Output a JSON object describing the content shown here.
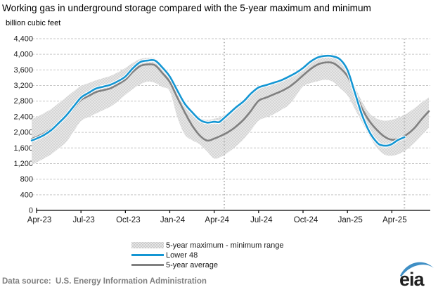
{
  "title": "Working gas in underground storage compared with the 5-year maximum and minimum",
  "y_axis_unit_label": "billion cubic feet",
  "footer": {
    "data_source": "Data source:  U.S. Energy Information Administration"
  },
  "logo": {
    "text": "eia"
  },
  "colors": {
    "lower48": "#1496d3",
    "average": "#808080",
    "band_fill": "#e6e6e6",
    "band_dots": "#c2c2c2",
    "gridline": "#c6c6c6",
    "axis": "#000000",
    "reference_line": "#b3b3b3",
    "logo_blue": "#3f8fc5",
    "logo_text": "#1f1f1f"
  },
  "legend": [
    {
      "label": "5-year maximum - minimum range",
      "swatch": "band"
    },
    {
      "label": "Lower 48",
      "swatch": "line",
      "color": "#1496d3"
    },
    {
      "label": "5-year average",
      "swatch": "line",
      "color": "#808080"
    }
  ],
  "chart_data": {
    "type": "line",
    "title": "Working gas in underground storage compared with the 5-year maximum and minimum",
    "xlabel": "",
    "ylabel": "billion cubic feet",
    "ylim": [
      0,
      4400
    ],
    "y_tick_step": 400,
    "grid": true,
    "legend_position": "bottom",
    "x_unit": "months since Apr-2023",
    "x_range": [
      -0.33,
      26.55
    ],
    "x_ticks": [
      {
        "t": 0,
        "label": "Apr-23"
      },
      {
        "t": 3,
        "label": "Jul-23"
      },
      {
        "t": 6,
        "label": "Oct-23"
      },
      {
        "t": 9,
        "label": "Jan-24"
      },
      {
        "t": 12,
        "label": "Apr-24"
      },
      {
        "t": 15,
        "label": "Jul-24"
      },
      {
        "t": 18,
        "label": "Oct-24"
      },
      {
        "t": 21,
        "label": "Jan-25"
      },
      {
        "t": 24,
        "label": "Apr-25"
      }
    ],
    "reference_lines_x": [
      12.68,
      24.85
    ],
    "series": [
      {
        "name": "5-year maximum - minimum range",
        "type": "band",
        "upper": [
          [
            -0.33,
            2330
          ],
          [
            0,
            2390
          ],
          [
            0.5,
            2490
          ],
          [
            1,
            2600
          ],
          [
            1.5,
            2750
          ],
          [
            2,
            2900
          ],
          [
            2.5,
            3050
          ],
          [
            3,
            3190
          ],
          [
            3.5,
            3260
          ],
          [
            4,
            3330
          ],
          [
            4.5,
            3390
          ],
          [
            5,
            3450
          ],
          [
            5.5,
            3540
          ],
          [
            6,
            3650
          ],
          [
            6.5,
            3780
          ],
          [
            7,
            3880
          ],
          [
            7.5,
            3910
          ],
          [
            8,
            3890
          ],
          [
            8.5,
            3690
          ],
          [
            9,
            3470
          ],
          [
            9.5,
            3100
          ],
          [
            10,
            2760
          ],
          [
            10.5,
            2550
          ],
          [
            11,
            2380
          ],
          [
            11.5,
            2320
          ],
          [
            12,
            2350
          ],
          [
            12.5,
            2400
          ],
          [
            13,
            2540
          ],
          [
            13.5,
            2700
          ],
          [
            14,
            2850
          ],
          [
            14.5,
            3040
          ],
          [
            15,
            3180
          ],
          [
            15.5,
            3240
          ],
          [
            16,
            3300
          ],
          [
            16.5,
            3360
          ],
          [
            17,
            3450
          ],
          [
            17.5,
            3560
          ],
          [
            18,
            3700
          ],
          [
            18.5,
            3860
          ],
          [
            19,
            3950
          ],
          [
            19.5,
            3980
          ],
          [
            20,
            3970
          ],
          [
            20.5,
            3890
          ],
          [
            21,
            3640
          ],
          [
            21.5,
            3180
          ],
          [
            22,
            2780
          ],
          [
            22.5,
            2480
          ],
          [
            23,
            2350
          ],
          [
            23.5,
            2300
          ],
          [
            24,
            2320
          ],
          [
            24.5,
            2390
          ],
          [
            25,
            2480
          ],
          [
            25.5,
            2610
          ],
          [
            26,
            2760
          ],
          [
            26.5,
            2900
          ]
        ],
        "lower": [
          [
            -0.33,
            1170
          ],
          [
            0,
            1230
          ],
          [
            0.5,
            1330
          ],
          [
            1,
            1440
          ],
          [
            1.5,
            1590
          ],
          [
            2,
            1750
          ],
          [
            2.5,
            2020
          ],
          [
            3,
            2290
          ],
          [
            3.5,
            2390
          ],
          [
            4,
            2480
          ],
          [
            4.5,
            2570
          ],
          [
            5,
            2660
          ],
          [
            5.5,
            2800
          ],
          [
            6,
            2960
          ],
          [
            6.5,
            3110
          ],
          [
            7,
            3230
          ],
          [
            7.5,
            3300
          ],
          [
            8,
            3270
          ],
          [
            8.5,
            3160
          ],
          [
            9,
            3050
          ],
          [
            9.5,
            2400
          ],
          [
            10,
            1950
          ],
          [
            10.5,
            1800
          ],
          [
            11,
            1700
          ],
          [
            11.5,
            1520
          ],
          [
            12,
            1330
          ],
          [
            12.5,
            1380
          ],
          [
            13,
            1500
          ],
          [
            13.5,
            1650
          ],
          [
            14,
            1830
          ],
          [
            14.5,
            2060
          ],
          [
            15,
            2300
          ],
          [
            15.5,
            2380
          ],
          [
            16,
            2460
          ],
          [
            16.5,
            2570
          ],
          [
            17,
            2690
          ],
          [
            17.5,
            2920
          ],
          [
            18,
            3180
          ],
          [
            18.5,
            3260
          ],
          [
            19,
            3310
          ],
          [
            19.5,
            3350
          ],
          [
            20,
            3300
          ],
          [
            20.5,
            3130
          ],
          [
            21,
            2950
          ],
          [
            21.5,
            2600
          ],
          [
            22,
            2250
          ],
          [
            22.5,
            1900
          ],
          [
            23,
            1600
          ],
          [
            23.5,
            1430
          ],
          [
            24,
            1400
          ],
          [
            24.5,
            1450
          ],
          [
            25,
            1560
          ],
          [
            25.5,
            1720
          ],
          [
            26,
            1920
          ],
          [
            26.5,
            2120
          ]
        ]
      },
      {
        "name": "5-year average",
        "type": "line",
        "color": "#808080",
        "points": [
          [
            -0.33,
            1830
          ],
          [
            0,
            1880
          ],
          [
            0.5,
            1970
          ],
          [
            1,
            2090
          ],
          [
            1.5,
            2250
          ],
          [
            2,
            2420
          ],
          [
            2.5,
            2620
          ],
          [
            3,
            2830
          ],
          [
            3.5,
            2930
          ],
          [
            4,
            3030
          ],
          [
            4.5,
            3080
          ],
          [
            5,
            3130
          ],
          [
            5.5,
            3230
          ],
          [
            6,
            3350
          ],
          [
            6.5,
            3550
          ],
          [
            7,
            3700
          ],
          [
            7.5,
            3740
          ],
          [
            8,
            3720
          ],
          [
            8.5,
            3520
          ],
          [
            9,
            3290
          ],
          [
            9.5,
            2900
          ],
          [
            10,
            2520
          ],
          [
            10.5,
            2180
          ],
          [
            11,
            1930
          ],
          [
            11.5,
            1790
          ],
          [
            12,
            1840
          ],
          [
            12.5,
            1920
          ],
          [
            13,
            2020
          ],
          [
            13.5,
            2160
          ],
          [
            14,
            2330
          ],
          [
            14.5,
            2560
          ],
          [
            15,
            2810
          ],
          [
            15.5,
            2890
          ],
          [
            16,
            2970
          ],
          [
            16.5,
            3050
          ],
          [
            17,
            3150
          ],
          [
            17.5,
            3290
          ],
          [
            18,
            3460
          ],
          [
            18.5,
            3620
          ],
          [
            19,
            3740
          ],
          [
            19.5,
            3790
          ],
          [
            20,
            3780
          ],
          [
            20.5,
            3650
          ],
          [
            21,
            3440
          ],
          [
            21.5,
            3050
          ],
          [
            22,
            2600
          ],
          [
            22.5,
            2280
          ],
          [
            23,
            2060
          ],
          [
            23.5,
            1890
          ],
          [
            24,
            1810
          ],
          [
            24.5,
            1840
          ],
          [
            25,
            1940
          ],
          [
            25.5,
            2100
          ],
          [
            26,
            2330
          ],
          [
            26.5,
            2540
          ]
        ]
      },
      {
        "name": "Lower 48",
        "type": "line",
        "color": "#1496d3",
        "points": [
          [
            -0.33,
            1790
          ],
          [
            0,
            1840
          ],
          [
            0.5,
            1930
          ],
          [
            1,
            2060
          ],
          [
            1.5,
            2240
          ],
          [
            2,
            2430
          ],
          [
            2.5,
            2660
          ],
          [
            3,
            2890
          ],
          [
            3.5,
            3010
          ],
          [
            4,
            3120
          ],
          [
            4.5,
            3170
          ],
          [
            5,
            3220
          ],
          [
            5.5,
            3310
          ],
          [
            6,
            3430
          ],
          [
            6.5,
            3640
          ],
          [
            7,
            3800
          ],
          [
            7.5,
            3840
          ],
          [
            8,
            3840
          ],
          [
            8.5,
            3660
          ],
          [
            9,
            3430
          ],
          [
            9.5,
            3080
          ],
          [
            10,
            2740
          ],
          [
            10.5,
            2520
          ],
          [
            11,
            2330
          ],
          [
            11.5,
            2250
          ],
          [
            12,
            2270
          ],
          [
            12.3,
            2260
          ],
          [
            12.5,
            2310
          ],
          [
            13,
            2480
          ],
          [
            13.5,
            2650
          ],
          [
            14,
            2800
          ],
          [
            14.5,
            3000
          ],
          [
            15,
            3150
          ],
          [
            15.5,
            3210
          ],
          [
            16,
            3270
          ],
          [
            16.5,
            3330
          ],
          [
            17,
            3420
          ],
          [
            17.5,
            3520
          ],
          [
            18,
            3650
          ],
          [
            18.5,
            3810
          ],
          [
            19,
            3920
          ],
          [
            19.5,
            3960
          ],
          [
            20,
            3950
          ],
          [
            20.5,
            3870
          ],
          [
            21,
            3600
          ],
          [
            21.5,
            3020
          ],
          [
            22,
            2430
          ],
          [
            22.5,
            2000
          ],
          [
            23,
            1740
          ],
          [
            23.3,
            1670
          ],
          [
            23.7,
            1660
          ],
          [
            24,
            1700
          ],
          [
            24.4,
            1800
          ],
          [
            24.85,
            1875
          ]
        ]
      }
    ]
  }
}
